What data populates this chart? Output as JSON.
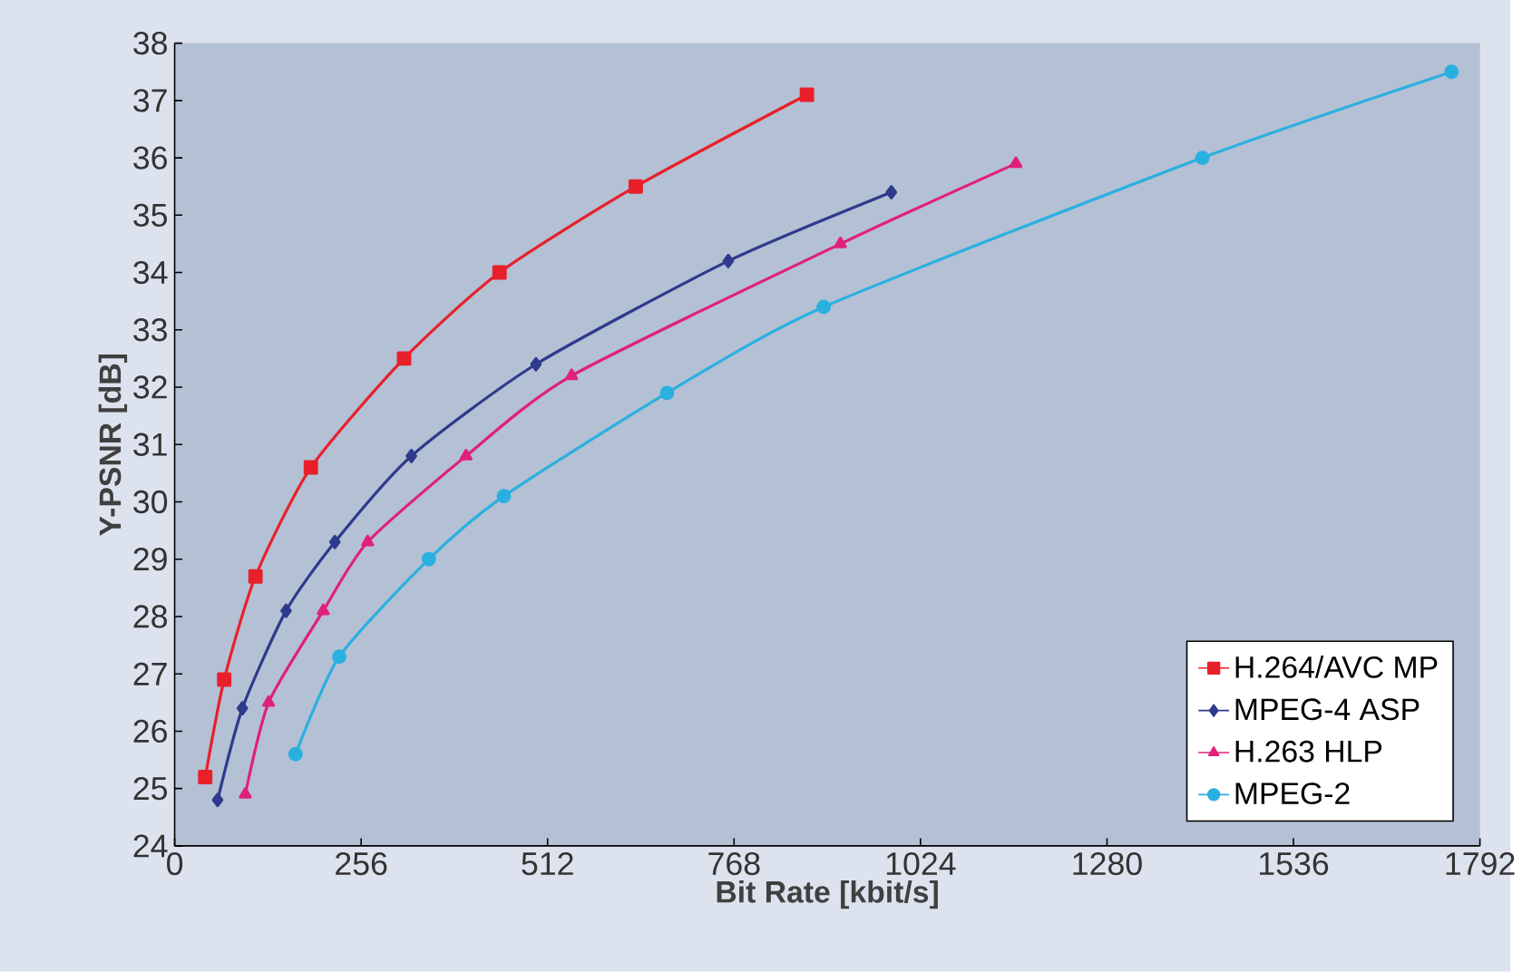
{
  "chart_data": {
    "type": "line",
    "xlabel": "Bit Rate [kbit/s]",
    "ylabel": "Y-PSNR [dB]",
    "xlim": [
      0,
      1792
    ],
    "xticks": [
      0,
      256,
      512,
      768,
      1024,
      1280,
      1536,
      1792
    ],
    "ylim": [
      24,
      38
    ],
    "yticks": [
      24,
      25,
      26,
      27,
      28,
      29,
      30,
      31,
      32,
      33,
      34,
      35,
      36,
      37,
      38
    ],
    "grid": false,
    "legend": "bottom right",
    "series": [
      {
        "name": "H.264/AVC MP",
        "color": "#e8202a",
        "marker": "square",
        "x": [
          42,
          68,
          111,
          187,
          315,
          446,
          633,
          868
        ],
        "values": [
          25.2,
          26.9,
          28.7,
          30.6,
          32.5,
          34.0,
          35.5,
          37.1
        ]
      },
      {
        "name": "MPEG-4 ASP",
        "color": "#2e3a8c",
        "marker": "diamond",
        "x": [
          59,
          93,
          153,
          220,
          325,
          496,
          760,
          984
        ],
        "values": [
          24.8,
          26.4,
          28.1,
          29.3,
          30.8,
          32.4,
          34.2,
          35.4
        ]
      },
      {
        "name": "H.263 HLP",
        "color": "#e0207a",
        "marker": "triangle",
        "x": [
          97,
          129,
          204,
          265,
          400,
          545,
          914,
          1155
        ],
        "values": [
          24.9,
          26.5,
          28.1,
          29.3,
          30.8,
          32.2,
          34.5,
          35.9
        ]
      },
      {
        "name": "MPEG-2",
        "color": "#2ab0e0",
        "marker": "circle",
        "x": [
          166,
          226,
          349,
          452,
          676,
          891,
          1411,
          1753
        ],
        "values": [
          25.6,
          27.3,
          29.0,
          30.1,
          31.9,
          33.4,
          36.0,
          37.5
        ]
      }
    ]
  }
}
